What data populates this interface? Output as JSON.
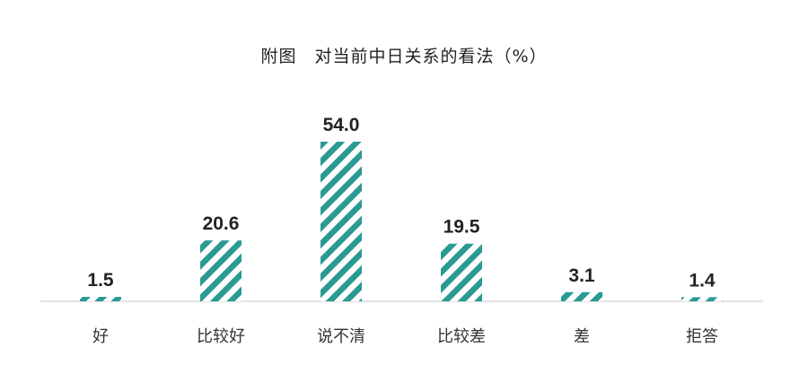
{
  "chart_data": {
    "type": "bar",
    "title": "附图　对当前中日关系的看法（%）",
    "categories": [
      "好",
      "比较好",
      "说不清",
      "比较差",
      "差",
      "拒答"
    ],
    "values": [
      1.5,
      20.6,
      54.0,
      19.5,
      3.1,
      1.4
    ],
    "value_labels": [
      "1.5",
      "20.6",
      "54.0",
      "19.5",
      "3.1",
      "1.4"
    ],
    "ylim": [
      0,
      54
    ],
    "grid": false,
    "legend": "none",
    "bar_color": "#2a9a93",
    "bar_pattern": "diagonal-stripes"
  }
}
